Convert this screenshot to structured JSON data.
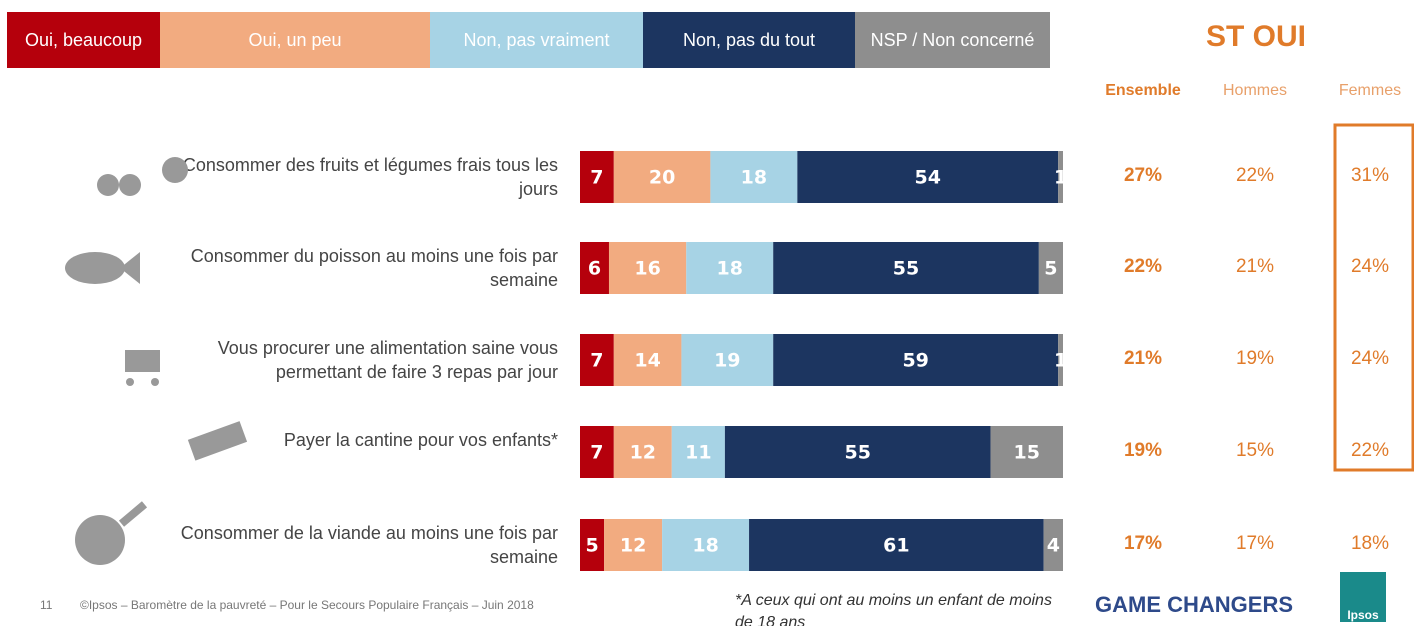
{
  "chart_data": {
    "type": "stacked-bar-horizontal",
    "categories": [
      "Consommer des fruits et légumes frais tous les jours",
      "Consommer du poisson au moins une fois par semaine",
      "Vous procurer une alimentation saine vous permettant de faire 3 repas par jour",
      "Payer la cantine pour vos enfants*",
      "Consommer de la viande au moins une fois par semaine"
    ],
    "xlim": [
      0,
      100
    ],
    "series": [
      {
        "name": "Oui, beaucoup",
        "color": "#b5000c",
        "values": [
          7,
          6,
          7,
          7,
          5
        ]
      },
      {
        "name": "Oui, un peu",
        "color": "#f2ab80",
        "values": [
          20,
          16,
          14,
          12,
          12
        ]
      },
      {
        "name": "Non, pas vraiment",
        "color": "#a7d3e5",
        "values": [
          18,
          18,
          19,
          11,
          18
        ]
      },
      {
        "name": "Non, pas du tout",
        "color": "#1c3560",
        "values": [
          54,
          55,
          59,
          55,
          61
        ]
      },
      {
        "name": "NSP / Non concerné",
        "color": "#8e8e8e",
        "values": [
          1,
          5,
          1,
          15,
          4
        ]
      }
    ],
    "st_oui": {
      "title": "ST OUI",
      "columns": [
        {
          "name": "Ensemble",
          "values": [
            27,
            22,
            21,
            19,
            17
          ],
          "value_labels": [
            "27%",
            "22%",
            "21%",
            "19%",
            "17%"
          ]
        },
        {
          "name": "Hommes",
          "values": [
            22,
            21,
            19,
            15,
            17
          ],
          "value_labels": [
            "22%",
            "21%",
            "19%",
            "15%",
            "17%"
          ]
        },
        {
          "name": "Femmes",
          "values": [
            31,
            24,
            24,
            22,
            18
          ],
          "value_labels": [
            "31%",
            "24%",
            "24%",
            "22%",
            "18%"
          ]
        }
      ]
    }
  },
  "footer": {
    "page": "11",
    "source": "©Ipsos – Baromètre de la pauvreté – Pour le Secours Populaire Français – Juin 2018",
    "note": "*A ceux qui ont au moins un enfant de moins de 18 ans",
    "slogan": "GAME CHANGERS",
    "logo": "Ipsos"
  }
}
